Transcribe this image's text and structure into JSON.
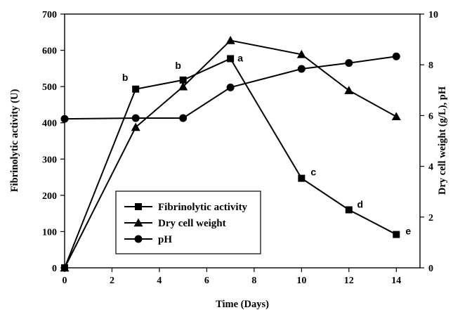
{
  "chart_data": {
    "type": "line",
    "xlabel": "Time (Days)",
    "ylabel": "Fibrinolytic activity (U)",
    "y2label": "Dry cell weight (g/L), pH",
    "xlim": [
      0,
      15
    ],
    "ylim": [
      0,
      700
    ],
    "y2lim": [
      0,
      10
    ],
    "x_ticks": [
      0,
      2,
      4,
      6,
      8,
      10,
      12,
      14
    ],
    "y_ticks": [
      0,
      100,
      200,
      300,
      400,
      500,
      600,
      700
    ],
    "y2_ticks": [
      0,
      2,
      4,
      6,
      8,
      10
    ],
    "grid": false,
    "legend_position": "lower-left",
    "series": [
      {
        "name": "Fibrinolytic activity",
        "axis": "left",
        "marker": "square",
        "x": [
          0,
          3,
          5,
          7,
          10,
          12,
          14
        ],
        "y": [
          0,
          493,
          518,
          577,
          247,
          160,
          92
        ]
      },
      {
        "name": "Dry cell weight",
        "axis": "right",
        "marker": "triangle",
        "x": [
          0,
          3,
          5,
          7,
          10,
          12,
          14
        ],
        "y": [
          0,
          5.54,
          7.14,
          8.96,
          8.41,
          6.99,
          5.96
        ]
      },
      {
        "name": "pH",
        "axis": "right",
        "marker": "circle",
        "x": [
          0,
          3,
          5,
          7,
          10,
          12,
          14
        ],
        "y": [
          5.87,
          5.9,
          5.9,
          7.11,
          7.84,
          8.07,
          8.33
        ]
      }
    ],
    "annotations": [
      {
        "text": "b",
        "x": 3,
        "y": 493,
        "axis": "left"
      },
      {
        "text": "b",
        "x": 5,
        "y": 518,
        "axis": "left"
      },
      {
        "text": "a",
        "x": 7,
        "y": 577,
        "axis": "left"
      },
      {
        "text": "c",
        "x": 10,
        "y": 247,
        "axis": "left"
      },
      {
        "text": "d",
        "x": 12,
        "y": 160,
        "axis": "left"
      },
      {
        "text": "e",
        "x": 14,
        "y": 92,
        "axis": "left"
      }
    ]
  }
}
